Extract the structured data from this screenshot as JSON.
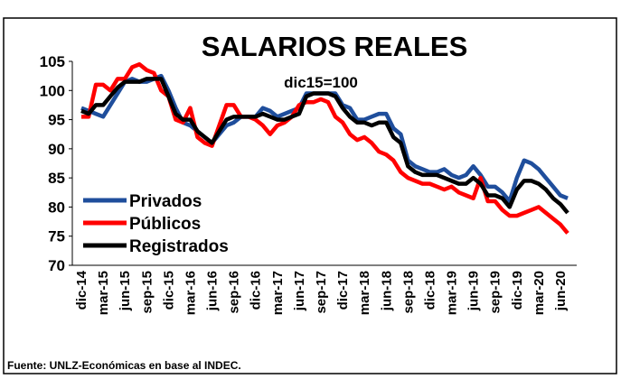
{
  "chart_data": {
    "type": "line",
    "title": "SALARIOS REALES",
    "annotation": "dic15=100",
    "source": "Fuente: UNLZ-Económicas en base al INDEC.",
    "categories": [
      "dic-14",
      null,
      null,
      "mar-15",
      null,
      null,
      "jun-15",
      null,
      null,
      "sep-15",
      null,
      null,
      "dic-15",
      null,
      null,
      "mar-16",
      null,
      null,
      "jun-16",
      null,
      null,
      "sep-16",
      null,
      null,
      "dic-16",
      null,
      null,
      "mar-17",
      null,
      null,
      "jun-17",
      null,
      null,
      "sep-17",
      null,
      null,
      "dic-17",
      null,
      null,
      "mar-18",
      null,
      null,
      "jun-18",
      null,
      null,
      "sep-18",
      null,
      null,
      "dic-18",
      null,
      null,
      "mar-19",
      null,
      null,
      "jun-19",
      null,
      null,
      "sep-19",
      null,
      null,
      "dic-19",
      null,
      null,
      "mar-20",
      null,
      null,
      "jun-20",
      null
    ],
    "series": [
      {
        "name": "Privados",
        "color": "#1f4e9c",
        "values": [
          97,
          96.5,
          96,
          95.5,
          97.5,
          99.5,
          101.5,
          102,
          101.5,
          101.5,
          102,
          102.5,
          100,
          97,
          94.5,
          94,
          93,
          92,
          91,
          92.5,
          94,
          94.5,
          95.5,
          95.5,
          95.5,
          97,
          96.5,
          95.5,
          96,
          96.5,
          97,
          99.5,
          99.5,
          99.5,
          99.5,
          99.5,
          97.5,
          97,
          95,
          95,
          95.5,
          96,
          96,
          93.5,
          92.5,
          88,
          87,
          86.5,
          86,
          86,
          86.5,
          85.5,
          85,
          85.5,
          87,
          85.5,
          83.5,
          83.5,
          82.5,
          81,
          85,
          88,
          87.5,
          86.5,
          85,
          83.5,
          82,
          81.5
        ]
      },
      {
        "name": "Públicos",
        "color": "#ff0000",
        "values": [
          95.5,
          95.5,
          101,
          101,
          100,
          102,
          102,
          104,
          104.5,
          103.5,
          103,
          100,
          99,
          95,
          94.5,
          97,
          92,
          91,
          90.5,
          94,
          97.5,
          97.5,
          95.5,
          95.5,
          95,
          94,
          92.5,
          94,
          94.5,
          95.5,
          97.5,
          98,
          98,
          98.5,
          98,
          95.5,
          94.5,
          92.5,
          91.5,
          92,
          91,
          89.5,
          89,
          88,
          86,
          85,
          84.5,
          84,
          84,
          83.5,
          83,
          83.5,
          82.5,
          82,
          81.5,
          85,
          81,
          81,
          79.5,
          78.5,
          78.5,
          79,
          79.5,
          80,
          79,
          78,
          77,
          75.5
        ]
      },
      {
        "name": "Registrados",
        "color": "#000000",
        "values": [
          96.5,
          96,
          97.5,
          97.5,
          99,
          100.5,
          101.5,
          101.5,
          101.5,
          102,
          102,
          102,
          99,
          96,
          95,
          95,
          93,
          92,
          91,
          93,
          95,
          95.5,
          95.5,
          95.5,
          95.5,
          96,
          95.5,
          95,
          95,
          95.5,
          96,
          99,
          99.5,
          99.5,
          99.5,
          99,
          97,
          95.5,
          94.5,
          94.5,
          94,
          94.5,
          94.5,
          92,
          91,
          87,
          86,
          85.5,
          85.5,
          85.5,
          85,
          84.5,
          84,
          84,
          85,
          84,
          82,
          82,
          81.5,
          80,
          83,
          84.5,
          84.5,
          84,
          83,
          81.5,
          80.5,
          79
        ]
      }
    ],
    "ylim": [
      70,
      105
    ],
    "yticks": [
      70,
      75,
      80,
      85,
      90,
      95,
      100,
      105
    ]
  }
}
